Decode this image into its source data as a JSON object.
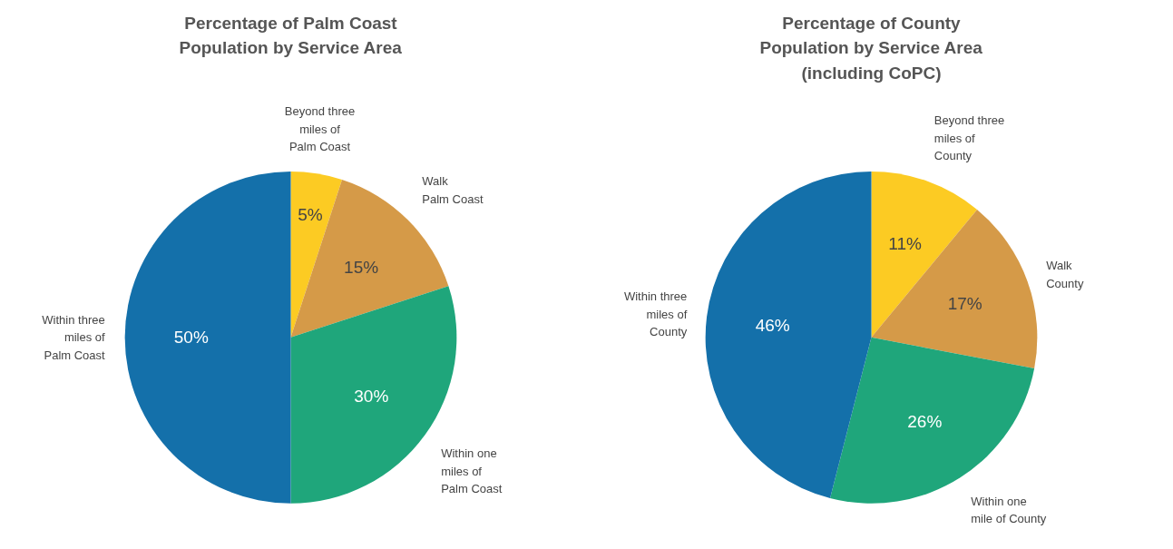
{
  "chart_data": [
    {
      "type": "pie",
      "title": "Percentage of Palm Coast\nPopulation by Service Area",
      "categories": [
        "Beyond three\nmiles of\nPalm Coast",
        "Walk\nPalm Coast",
        "Within one\nmiles of\nPalm Coast",
        "Within three\nmiles of\nPalm Coast"
      ],
      "values": [
        5,
        15,
        30,
        50
      ],
      "value_labels": [
        "5%",
        "15%",
        "30%",
        "50%"
      ],
      "colors": [
        "#fccb23",
        "#d59a48",
        "#1fa67b",
        "#1470aa"
      ]
    },
    {
      "type": "pie",
      "title": "Percentage of County\nPopulation by Service Area\n(including CoPC)",
      "categories": [
        "Beyond three\nmiles of\nCounty",
        "Walk\nCounty",
        "Within one\nmile of County",
        "Within three\nmiles of\nCounty"
      ],
      "values": [
        11,
        17,
        26,
        46
      ],
      "value_labels": [
        "11%",
        "17%",
        "26%",
        "46%"
      ],
      "colors": [
        "#fccb23",
        "#d59a48",
        "#1fa67b",
        "#1470aa"
      ]
    }
  ]
}
